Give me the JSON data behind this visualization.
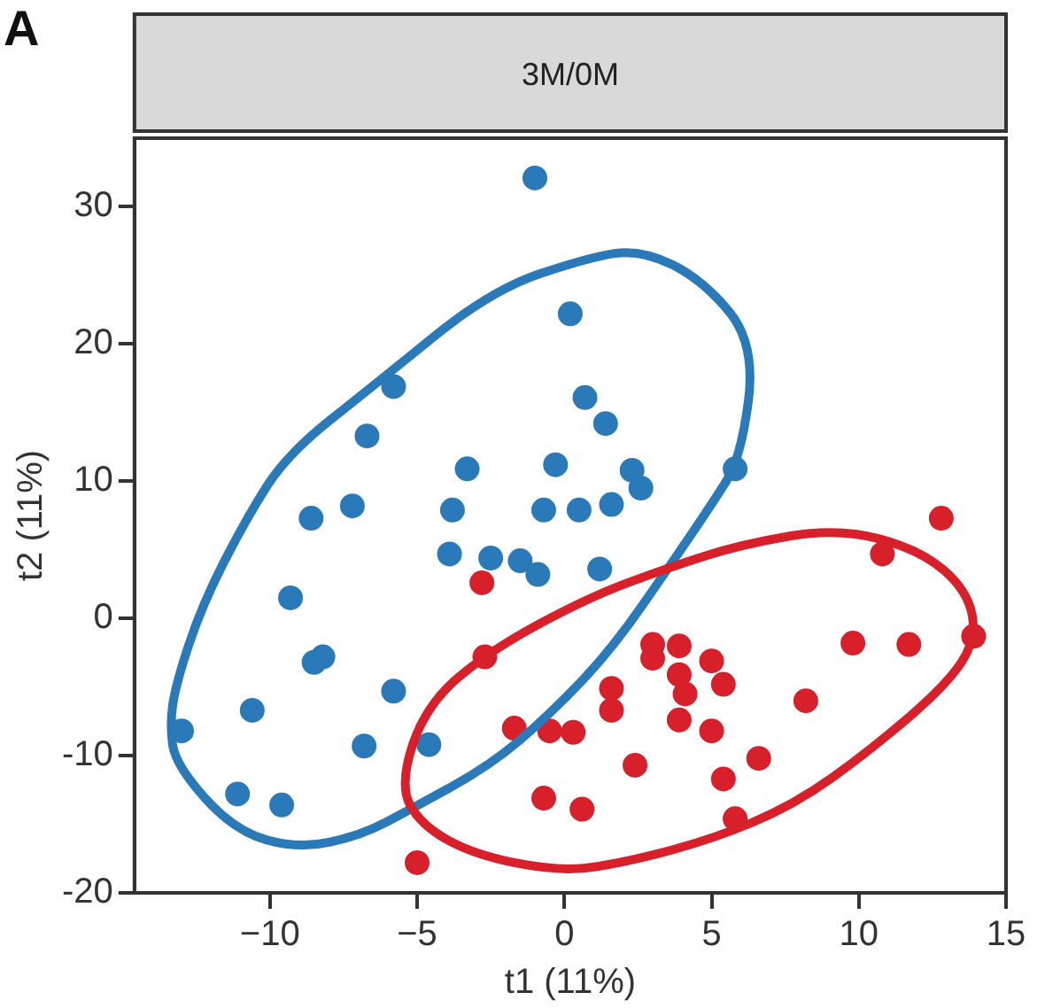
{
  "chart_data": {
    "type": "scatter",
    "title": "3M/0M",
    "xlabel": "t1 (11%)",
    "ylabel": "t2 (11%)",
    "annotations": [
      "A"
    ],
    "xlim": [
      -14.6,
      15
    ],
    "xticks": [
      {
        "value": -10,
        "label": "−10"
      },
      {
        "value": -5,
        "label": "−5"
      },
      0,
      5,
      10,
      15
    ],
    "ylim": [
      -20,
      35
    ],
    "yticks": [
      -20,
      -10,
      0,
      10,
      20,
      30
    ],
    "grid": false,
    "legend": false,
    "marker": "circle",
    "series": [
      {
        "color": "#2a7ab9",
        "x": [
          -1.0,
          0.2,
          0.7,
          1.4,
          -5.8,
          -6.7,
          -3.3,
          -0.3,
          2.3,
          2.6,
          5.8,
          -7.2,
          -8.6,
          -3.8,
          -0.7,
          0.5,
          1.6,
          -3.9,
          -2.5,
          -1.5,
          -0.9,
          1.2,
          -9.3,
          -8.2,
          -8.5,
          -5.8,
          -10.6,
          -13.0,
          -6.8,
          -4.6,
          -11.1,
          -9.6
        ],
        "values": [
          32.1,
          22.2,
          16.1,
          14.2,
          16.9,
          13.3,
          10.9,
          11.2,
          10.8,
          9.5,
          10.9,
          8.2,
          7.3,
          7.9,
          7.9,
          7.9,
          8.3,
          4.7,
          4.4,
          4.2,
          3.2,
          3.6,
          1.5,
          -2.8,
          -3.2,
          -5.3,
          -6.7,
          -8.2,
          -9.3,
          -9.2,
          -12.8,
          -13.6
        ]
      },
      {
        "color": "#d7202a",
        "x": [
          -2.8,
          -5.0,
          -0.7,
          0.6,
          -1.7,
          -0.5,
          0.3,
          -2.7,
          12.8,
          10.8,
          9.8,
          11.7,
          13.9,
          8.2,
          3.0,
          3.9,
          3.0,
          5.0,
          5.4,
          3.9,
          4.1,
          1.6,
          1.6,
          3.9,
          5.0,
          6.6,
          5.4,
          2.4,
          5.8
        ],
        "values": [
          2.6,
          -17.8,
          -13.1,
          -13.9,
          -8.0,
          -8.2,
          -8.3,
          -2.8,
          7.3,
          4.7,
          -1.8,
          -1.9,
          -1.3,
          -6.0,
          -1.9,
          -2.0,
          -2.9,
          -3.1,
          -4.8,
          -4.1,
          -5.5,
          -5.1,
          -6.7,
          -7.4,
          -8.2,
          -10.2,
          -11.7,
          -10.7,
          -14.6
        ]
      }
    ]
  }
}
